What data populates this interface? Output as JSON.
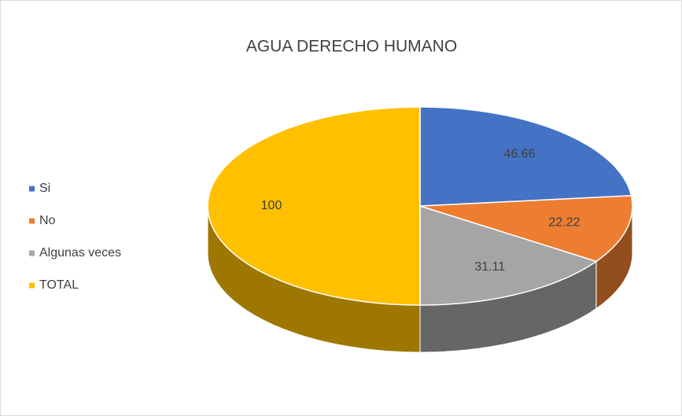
{
  "chart_data": {
    "type": "pie3d",
    "title": "AGUA DERECHO HUMANO",
    "categories": [
      "Si",
      "No",
      "Algunas veces",
      "TOTAL"
    ],
    "values": [
      46.66,
      22.22,
      31.11,
      100
    ],
    "colors": [
      "#4472c4",
      "#ed7d31",
      "#a5a5a5",
      "#ffc000"
    ],
    "legend": "left"
  }
}
